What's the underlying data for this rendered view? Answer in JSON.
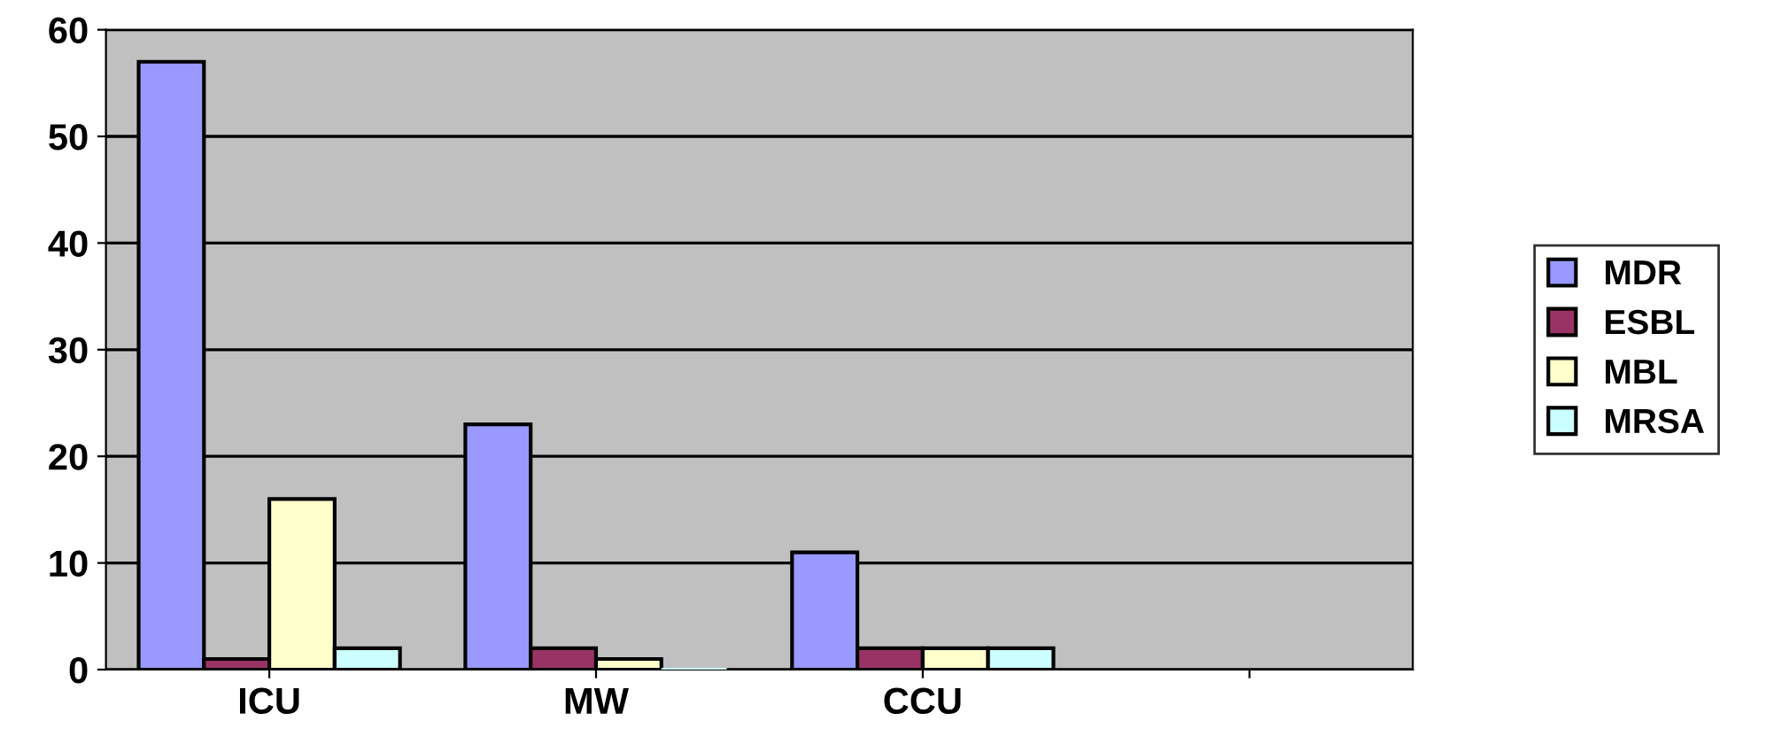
{
  "chart_data": {
    "type": "bar",
    "categories": [
      "ICU",
      "MW",
      "CCU",
      null
    ],
    "series": [
      {
        "name": "MDR",
        "color": "#9999ff",
        "values": [
          57,
          23,
          11,
          null
        ]
      },
      {
        "name": "ESBL",
        "color": "#993366",
        "values": [
          1,
          2,
          2,
          null
        ]
      },
      {
        "name": "MBL",
        "color": "#ffffcc",
        "values": [
          16,
          1,
          2,
          null
        ]
      },
      {
        "name": "MRSA",
        "color": "#ccffff",
        "values": [
          2,
          0,
          2,
          null
        ]
      }
    ],
    "ylim": [
      0,
      60
    ],
    "yticks": [
      0,
      10,
      20,
      30,
      40,
      50,
      60
    ],
    "grid": "y",
    "legend": "right"
  }
}
